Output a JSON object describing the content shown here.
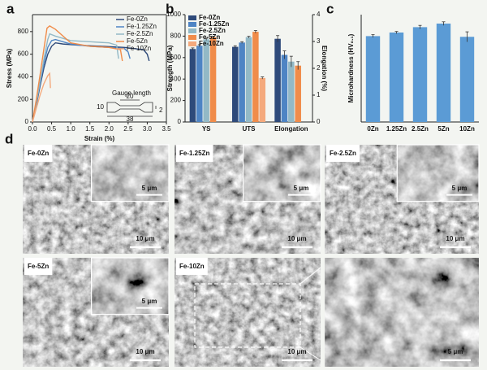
{
  "chart_data": [
    {
      "type": "line",
      "label": "a",
      "xlabel": "Strain (%)",
      "ylabel": "Stress (MPa)",
      "xlim": [
        0,
        3.5
      ],
      "xticks": [
        {
          "value": 0,
          "label": "0.0"
        },
        0.5,
        {
          "value": 1,
          "label": "1.0"
        },
        1.5,
        {
          "value": 2,
          "label": "2.0"
        },
        2.5,
        {
          "value": 3,
          "label": "3.0"
        },
        3.5
      ],
      "ylim": [
        0,
        950
      ],
      "yticks": [
        0,
        200,
        400,
        600,
        800
      ],
      "legend": "upper right",
      "series": [
        {
          "name": "Fe-0Zn",
          "color": "#2e4a7a",
          "x": [
            0,
            0.1,
            0.2,
            0.3,
            0.4,
            0.5,
            0.6,
            0.8,
            1.2,
            1.8,
            2.4,
            2.9,
            3.0,
            3.05
          ],
          "values": [
            0,
            150,
            320,
            480,
            600,
            670,
            700,
            690,
            680,
            670,
            660,
            640,
            600,
            540
          ]
        },
        {
          "name": "Fe-1.25Zn",
          "color": "#4e84c4",
          "x": [
            0,
            0.1,
            0.2,
            0.3,
            0.4,
            0.5,
            0.6,
            1.0,
            1.5,
            2.0,
            2.4,
            2.5,
            2.55
          ],
          "values": [
            0,
            160,
            340,
            520,
            660,
            720,
            730,
            690,
            670,
            660,
            650,
            620,
            560
          ]
        },
        {
          "name": "Fe-2.5Zn",
          "color": "#93b9c6",
          "x": [
            0,
            0.1,
            0.2,
            0.3,
            0.4,
            0.45,
            0.6,
            1.0,
            1.5,
            2.0,
            2.2,
            2.25
          ],
          "values": [
            0,
            170,
            360,
            560,
            730,
            780,
            760,
            720,
            710,
            700,
            680,
            560
          ]
        },
        {
          "name": "Fe-5Zn",
          "color": "#f08c4a",
          "x": [
            0,
            0.1,
            0.2,
            0.3,
            0.38,
            0.45,
            0.6,
            1.0,
            1.5,
            2.0,
            2.3,
            2.35
          ],
          "values": [
            0,
            200,
            420,
            650,
            830,
            850,
            820,
            700,
            670,
            660,
            640,
            540
          ]
        },
        {
          "name": "Fe-10Zn",
          "color": "#f4a97c",
          "x": [
            0,
            0.1,
            0.2,
            0.3,
            0.4,
            0.45,
            0.47
          ],
          "values": [
            0,
            120,
            240,
            340,
            410,
            430,
            300
          ]
        }
      ],
      "annotations": [
        "Gauge length",
        "20",
        "38",
        "10",
        "2"
      ]
    },
    {
      "type": "bar",
      "label": "b",
      "ylabel": "Strength (MPa)",
      "y2label": "Elongation (%)",
      "categories": [
        "YS",
        "UTS",
        "Elongation"
      ],
      "category_axis": [
        "y",
        "y",
        "y2"
      ],
      "ylim": [
        0,
        1000
      ],
      "yticks": [
        0,
        200,
        400,
        600,
        800,
        1000
      ],
      "y2lim": [
        0,
        4
      ],
      "y2ticks": [
        0,
        1,
        2,
        3,
        4
      ],
      "legend": "upper left",
      "series": [
        {
          "name": "Fe-0Zn",
          "color": "#2e4a7a",
          "values": [
            680,
            700,
            3.1
          ],
          "errors": [
            10,
            10,
            0.12
          ]
        },
        {
          "name": "Fe-1.25Zn",
          "color": "#4e84c4",
          "values": [
            710,
            740,
            2.5
          ],
          "errors": [
            10,
            8,
            0.15
          ]
        },
        {
          "name": "Fe-2.5Zn",
          "color": "#93b9c6",
          "values": [
            770,
            790,
            2.25
          ],
          "errors": [
            10,
            8,
            0.2
          ]
        },
        {
          "name": "Fe-5Zn",
          "color": "#f08c4a",
          "values": [
            790,
            840,
            2.1
          ],
          "errors": [
            10,
            12,
            0.15
          ]
        },
        {
          "name": "Fe-10Zn",
          "color": "#f4a97c",
          "values": [
            null,
            410,
            null
          ],
          "errors": [
            null,
            10,
            null
          ]
        }
      ]
    },
    {
      "type": "bar",
      "label": "c",
      "ylabel": "Microhardness (HV₀.₁)",
      "color": "#5b9bd5",
      "categories": [
        "0Zn",
        "1.25Zn",
        "2.5Zn",
        "5Zn",
        "10Zn"
      ],
      "values": [
        240,
        250,
        265,
        275,
        238
      ],
      "errors": [
        4,
        3,
        5,
        5,
        14
      ],
      "ylim": [
        0,
        300
      ]
    }
  ],
  "figure_d": {
    "label": "d",
    "micrographs": [
      {
        "label": "Fe-0Zn",
        "inset_scale": "5 μm",
        "scale": "10 μm"
      },
      {
        "label": "Fe-1.25Zn",
        "inset_scale": "5 μm",
        "scale": "10 μm"
      },
      {
        "label": "Fe-2.5Zn",
        "inset_scale": "5 μm",
        "scale": "10 μm"
      },
      {
        "label": "Fe-5Zn",
        "inset_scale": "5 μm",
        "scale": "10 μm"
      },
      {
        "label": "Fe-10Zn",
        "scale": "10 μm"
      },
      {
        "scale": "5 μm"
      }
    ]
  }
}
